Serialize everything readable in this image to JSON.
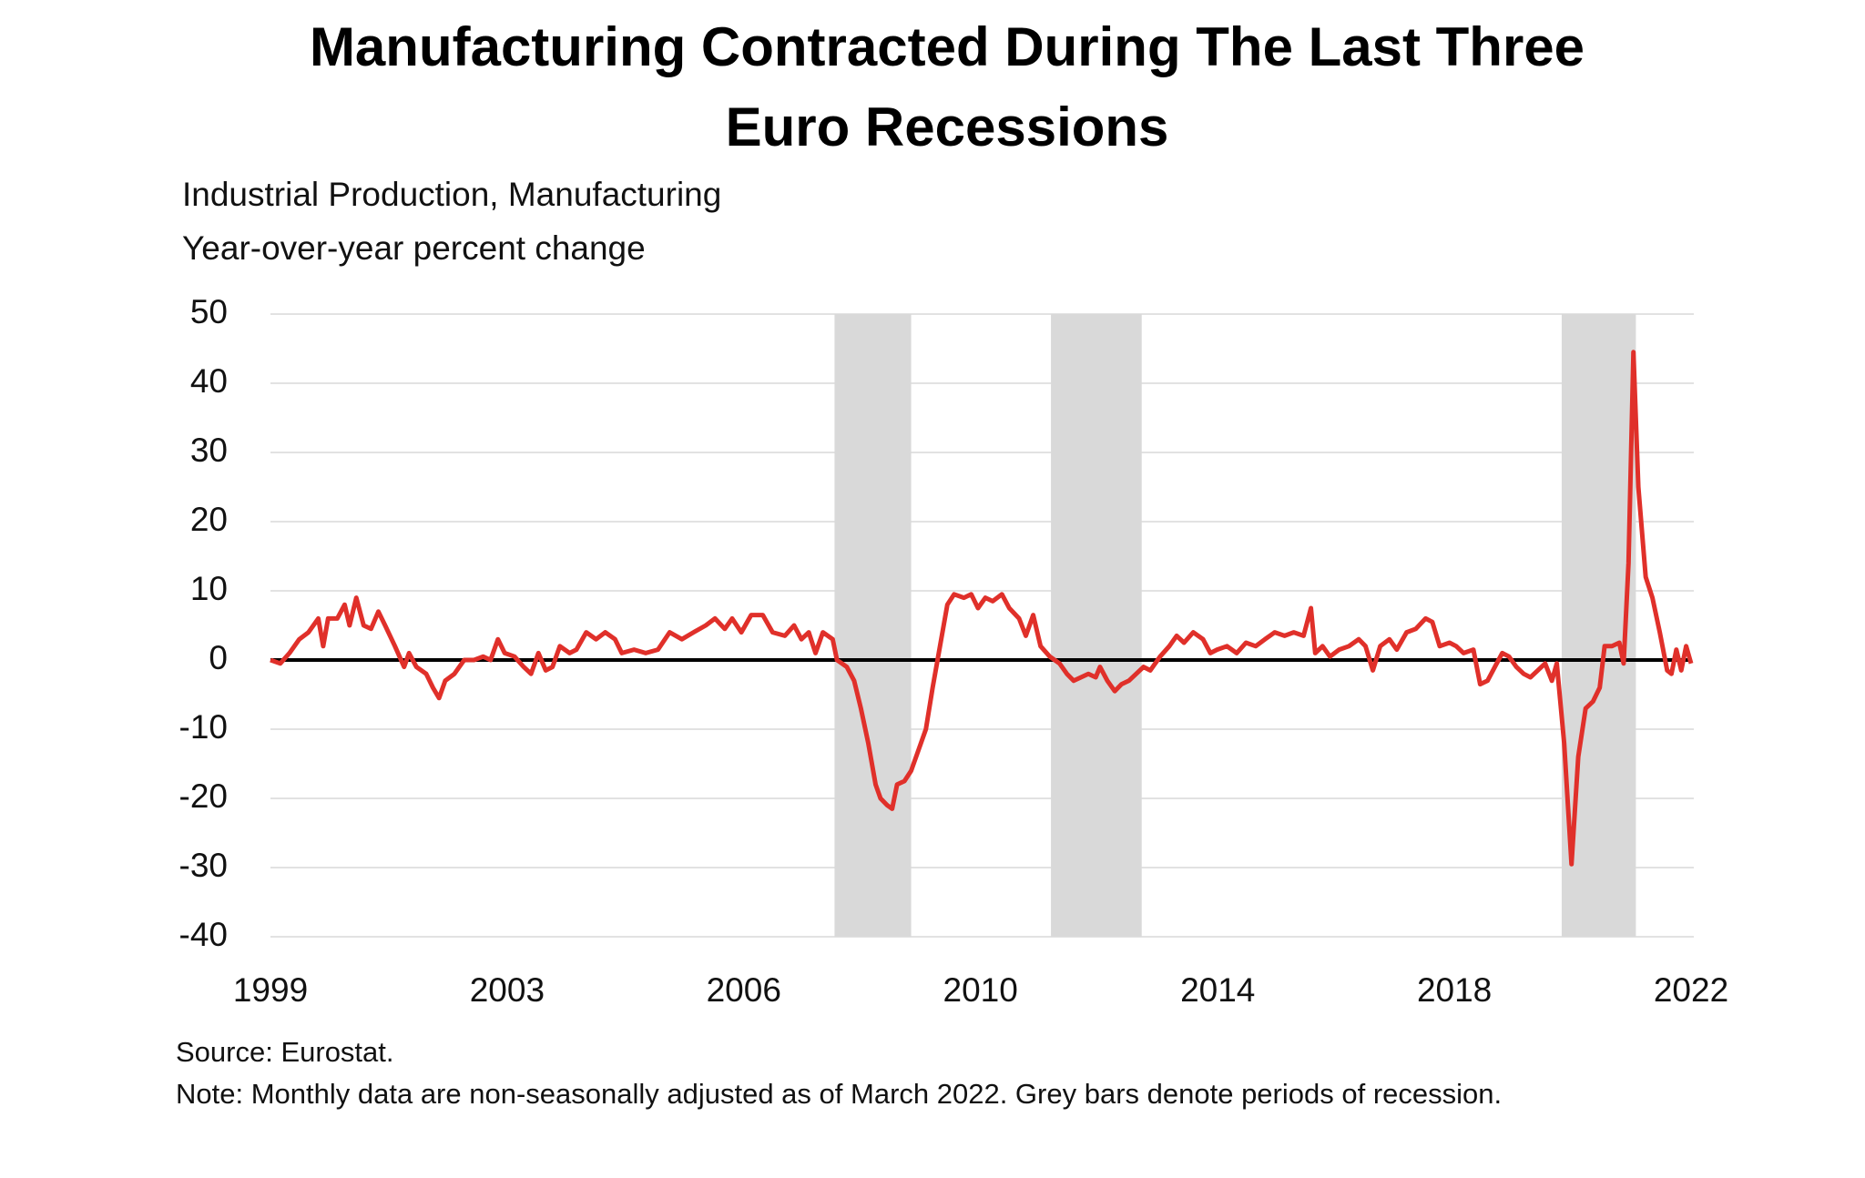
{
  "chart_data": {
    "type": "line",
    "title": "Manufacturing Contracted During The Last Three Euro Recessions",
    "subtitle": "Industrial Production, Manufacturing",
    "y_label": "Year-over-year percent change",
    "source": "Source: Eurostat.",
    "note": "Note: Monthly data are non-seasonally adjusted as of March 2022. Grey bars denote periods of recession.",
    "xlim": [
      1999,
      2022.17
    ],
    "xticks": [
      {
        "value": 1999,
        "label": "1999"
      },
      {
        "value": 2002.86,
        "label": "2003"
      },
      {
        "value": 2006.72,
        "label": "2006"
      },
      {
        "value": 2010.58,
        "label": "2010"
      },
      {
        "value": 2014.45,
        "label": "2014"
      },
      {
        "value": 2018.31,
        "label": "2018"
      },
      {
        "value": 2022.17,
        "label": "2022"
      }
    ],
    "ylim": [
      -40,
      50
    ],
    "yticks": [
      -40,
      -30,
      -20,
      -10,
      0,
      10,
      20,
      30,
      40,
      50
    ],
    "grid": true,
    "recession_color": "#d9d9d9",
    "recessions": [
      [
        2008.2,
        2009.45
      ],
      [
        2011.73,
        2013.21
      ],
      [
        2020.06,
        2021.27
      ]
    ],
    "x": [
      1999.0,
      1999.16,
      1999.31,
      1999.47,
      1999.62,
      1999.78,
      1999.86,
      1999.94,
      2000.09,
      2000.21,
      2000.29,
      2000.4,
      2000.52,
      2000.64,
      2000.76,
      2000.87,
      2001.03,
      2001.18,
      2001.26,
      2001.38,
      2001.54,
      2001.65,
      2001.75,
      2001.85,
      2002.0,
      2002.16,
      2002.32,
      2002.47,
      2002.59,
      2002.71,
      2002.82,
      2002.98,
      2003.13,
      2003.25,
      2003.37,
      2003.49,
      2003.6,
      2003.72,
      2003.88,
      2003.99,
      2004.15,
      2004.31,
      2004.46,
      2004.62,
      2004.73,
      2004.93,
      2005.12,
      2005.32,
      2005.51,
      2005.71,
      2005.9,
      2006.1,
      2006.25,
      2006.41,
      2006.53,
      2006.68,
      2006.84,
      2007.03,
      2007.19,
      2007.39,
      2007.54,
      2007.66,
      2007.78,
      2007.89,
      2008.01,
      2008.17,
      2008.24,
      2008.4,
      2008.52,
      2008.63,
      2008.75,
      2008.87,
      2008.95,
      2009.06,
      2009.14,
      2009.22,
      2009.34,
      2009.45,
      2009.57,
      2009.69,
      2009.8,
      2009.92,
      2010.04,
      2010.15,
      2010.31,
      2010.43,
      2010.54,
      2010.66,
      2010.78,
      2010.93,
      2011.05,
      2011.21,
      2011.32,
      2011.44,
      2011.56,
      2011.71,
      2011.87,
      2011.99,
      2012.1,
      2012.22,
      2012.34,
      2012.46,
      2012.53,
      2012.65,
      2012.77,
      2012.88,
      2013.0,
      2013.12,
      2013.24,
      2013.35,
      2013.51,
      2013.66,
      2013.78,
      2013.9,
      2014.05,
      2014.21,
      2014.33,
      2014.44,
      2014.6,
      2014.76,
      2014.91,
      2015.07,
      2015.22,
      2015.38,
      2015.54,
      2015.69,
      2015.85,
      2015.97,
      2016.04,
      2016.16,
      2016.28,
      2016.43,
      2016.59,
      2016.75,
      2016.86,
      2016.98,
      2017.1,
      2017.25,
      2017.37,
      2017.53,
      2017.68,
      2017.84,
      2017.95,
      2018.07,
      2018.23,
      2018.34,
      2018.46,
      2018.62,
      2018.73,
      2018.85,
      2018.97,
      2019.09,
      2019.2,
      2019.32,
      2019.44,
      2019.55,
      2019.67,
      2019.79,
      2019.9,
      2019.98,
      2020.1,
      2020.22,
      2020.33,
      2020.45,
      2020.57,
      2020.68,
      2020.76,
      2020.88,
      2021.0,
      2021.07,
      2021.15,
      2021.23,
      2021.31,
      2021.43,
      2021.54,
      2021.66,
      2021.78,
      2021.85,
      2021.93,
      2022.01,
      2022.09,
      2022.17
    ],
    "series": [
      {
        "color": "#e0302a",
        "values": [
          0,
          -0.5,
          1,
          3,
          4,
          6,
          2,
          6,
          6,
          8,
          5,
          9,
          5,
          4.5,
          7,
          5,
          2,
          -1,
          1,
          -1,
          -2,
          -4,
          -5.5,
          -3,
          -2,
          0,
          0,
          0.5,
          0,
          3,
          1,
          0.5,
          -1,
          -2,
          1,
          -1.5,
          -1,
          2,
          1,
          1.5,
          4,
          3,
          4,
          3,
          1,
          1.5,
          1,
          1.5,
          4,
          3,
          4,
          5,
          6,
          4.5,
          6,
          4,
          6.5,
          6.5,
          4,
          3.5,
          5,
          3,
          4,
          1,
          4,
          3,
          0,
          -1,
          -3,
          -7,
          -12,
          -18,
          -20,
          -21,
          -21.5,
          -18,
          -17.5,
          -16,
          -13,
          -10,
          -4,
          2,
          8,
          9.5,
          9,
          9.5,
          7.5,
          9,
          8.5,
          9.5,
          7.5,
          6,
          3.5,
          6.5,
          2,
          0.5,
          -0.5,
          -2,
          -3,
          -2.5,
          -2,
          -2.5,
          -1,
          -3,
          -4.5,
          -3.5,
          -3,
          -2,
          -1,
          -1.5,
          0.5,
          2,
          3.5,
          2.5,
          4,
          3,
          1,
          1.5,
          2,
          1,
          2.5,
          2,
          3,
          4,
          3.5,
          4,
          3.5,
          7.5,
          1,
          2,
          0.5,
          1.5,
          2,
          3,
          2,
          -1.5,
          2,
          3,
          1.5,
          4,
          4.5,
          6,
          5.5,
          2,
          2.5,
          2,
          1,
          1.5,
          -3.5,
          -3,
          -1,
          1,
          0.5,
          -1,
          -2,
          -2.5,
          -1.5,
          -0.5,
          -3,
          -0.5,
          -12,
          -29.5,
          -14,
          -7,
          -6,
          -4,
          2,
          2,
          2.5,
          -0.5,
          14,
          44.5,
          25,
          12,
          9,
          4,
          -1.5,
          -2,
          1.5,
          -1.5,
          2,
          -0.5
        ]
      }
    ]
  }
}
